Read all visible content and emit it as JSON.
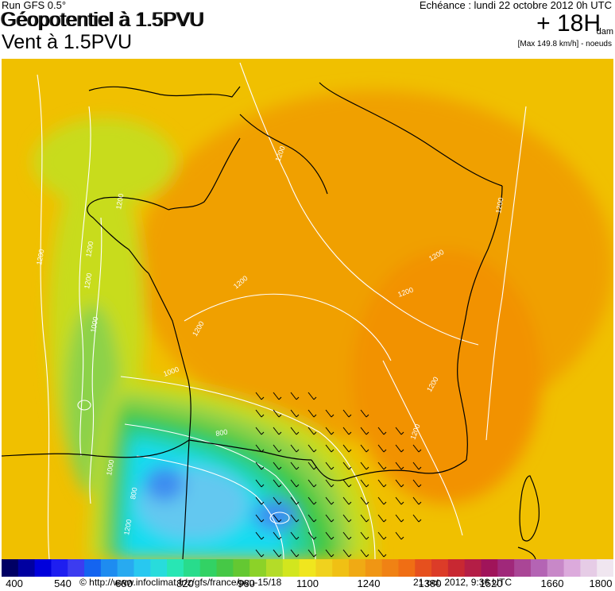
{
  "header": {
    "run": "Run GFS 0.5°",
    "title_line1": "Géopotentiel à 1.5PVU",
    "title_overlay": "Géopotentiel à 1.5PVU",
    "title_line2": "Vent à 1.5PVU",
    "echeance": "Echéance : lundi 22 octobre 2012 0h UTC",
    "leadtime": "+ 18H",
    "unit": "dam",
    "maxwind": "[Max 149.8 km/h] - noeuds"
  },
  "map": {
    "region": "France",
    "contour_labels": [
      "1200",
      "1200",
      "1200",
      "1200",
      "1200",
      "1200",
      "1200",
      "1200",
      "1200",
      "1200",
      "1000",
      "1000",
      "1000",
      "800",
      "800",
      "1200",
      "1200",
      "1200"
    ],
    "colors": {
      "far": "#f0c000",
      "inland": "#f0a000",
      "warm": "#f29200",
      "yellow_green": "#c8dc1e",
      "light_green": "#8cd24a",
      "green": "#3cc846",
      "teal": "#20d2a0",
      "cyan": "#14dcf0",
      "light_blue": "#64c8f0",
      "blue": "#3c8cf0",
      "contour": "#ffffff",
      "border": "#000000"
    }
  },
  "colorbar": {
    "colors": [
      "#000064",
      "#0000a0",
      "#0000dc",
      "#1e1ef0",
      "#3c3cf0",
      "#1464f0",
      "#1e8cf0",
      "#28aaf0",
      "#28c8f0",
      "#28dcdc",
      "#28e6b4",
      "#28dc8c",
      "#32d264",
      "#46c846",
      "#64c832",
      "#8cd228",
      "#b4dc28",
      "#d2e61e",
      "#f0e61e",
      "#f0d21e",
      "#f0c014",
      "#f0aa14",
      "#f09614",
      "#f08214",
      "#f06e14",
      "#e6501e",
      "#dc3c28",
      "#c82832",
      "#b41e46",
      "#a0145a",
      "#a0287a",
      "#aa4696",
      "#b464b4",
      "#c888c8",
      "#dcaadc",
      "#e6cce6",
      "#f0e6f0"
    ],
    "tick_labels": [
      {
        "label": "400",
        "value": 400
      },
      {
        "label": "540",
        "value": 540
      },
      {
        "label": "680",
        "value": 680
      },
      {
        "label": "820",
        "value": 820
      },
      {
        "label": "960",
        "value": 960
      },
      {
        "label": "1100",
        "value": 1100
      },
      {
        "label": "1240",
        "value": 1240
      },
      {
        "label": "1380",
        "value": 1380
      },
      {
        "label": "1520",
        "value": 1520
      },
      {
        "label": "1660",
        "value": 1660
      },
      {
        "label": "1800",
        "value": 1800
      }
    ],
    "min": 400,
    "max": 1800
  },
  "footer": {
    "credit": "© http://www.infoclimat.fr/z/gfs/france/pvu-15/18",
    "stamp": "21 oct. 2012, 9:36 UTC"
  }
}
